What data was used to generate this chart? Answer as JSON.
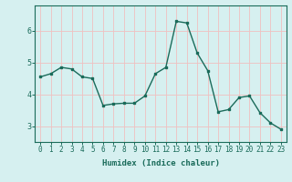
{
  "x": [
    0,
    1,
    2,
    3,
    4,
    5,
    6,
    7,
    8,
    9,
    10,
    11,
    12,
    13,
    14,
    15,
    16,
    17,
    18,
    19,
    20,
    21,
    22,
    23
  ],
  "y": [
    4.55,
    4.65,
    4.85,
    4.8,
    4.55,
    4.5,
    3.65,
    3.7,
    3.72,
    3.72,
    3.95,
    4.65,
    4.85,
    6.3,
    6.25,
    5.3,
    4.75,
    3.45,
    3.52,
    3.9,
    3.95,
    3.42,
    3.1,
    2.9
  ],
  "xlabel": "Humidex (Indice chaleur)",
  "line_color": "#1a6b5a",
  "bg_color": "#d6f0f0",
  "grid_color": "#f0c0c0",
  "yticks": [
    3,
    4,
    5,
    6
  ],
  "ylim": [
    2.5,
    6.8
  ],
  "xlim": [
    -0.5,
    23.5
  ],
  "marker": "s",
  "markersize": 2,
  "linewidth": 1.0,
  "tick_fontsize": 5.5,
  "xlabel_fontsize": 6.5
}
